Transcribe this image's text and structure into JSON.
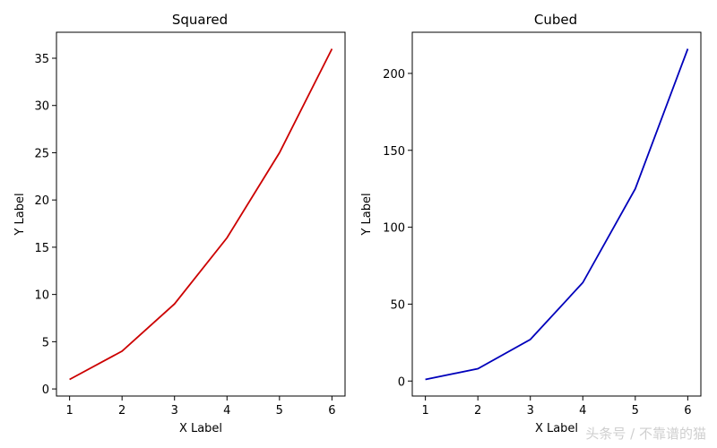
{
  "chart_data": [
    {
      "type": "line",
      "title": "Squared",
      "xlabel": "X Label",
      "ylabel": "Y Label",
      "x": [
        1,
        2,
        3,
        4,
        5,
        6
      ],
      "series": [
        {
          "values": [
            1,
            4,
            9,
            16,
            25,
            36
          ],
          "color": "#cc0000"
        }
      ],
      "xlim": [
        0.75,
        6.25
      ],
      "ylim": [
        -0.75,
        37.75
      ],
      "xticks": [
        1,
        2,
        3,
        4,
        5,
        6
      ],
      "yticks": [
        0,
        5,
        10,
        15,
        20,
        25,
        30,
        35
      ],
      "grid": false
    },
    {
      "type": "line",
      "title": "Cubed",
      "xlabel": "X Label",
      "ylabel": "Y Label",
      "x": [
        1,
        2,
        3,
        4,
        5,
        6
      ],
      "series": [
        {
          "values": [
            1,
            8,
            27,
            64,
            125,
            216
          ],
          "color": "#0000bb"
        }
      ],
      "xlim": [
        0.75,
        6.25
      ],
      "ylim": [
        -9.75,
        226.75
      ],
      "xticks": [
        1,
        2,
        3,
        4,
        5,
        6
      ],
      "yticks": [
        0,
        50,
        100,
        150,
        200
      ],
      "grid": false
    }
  ],
  "watermark": "头条号 / 不靠谱的猫"
}
